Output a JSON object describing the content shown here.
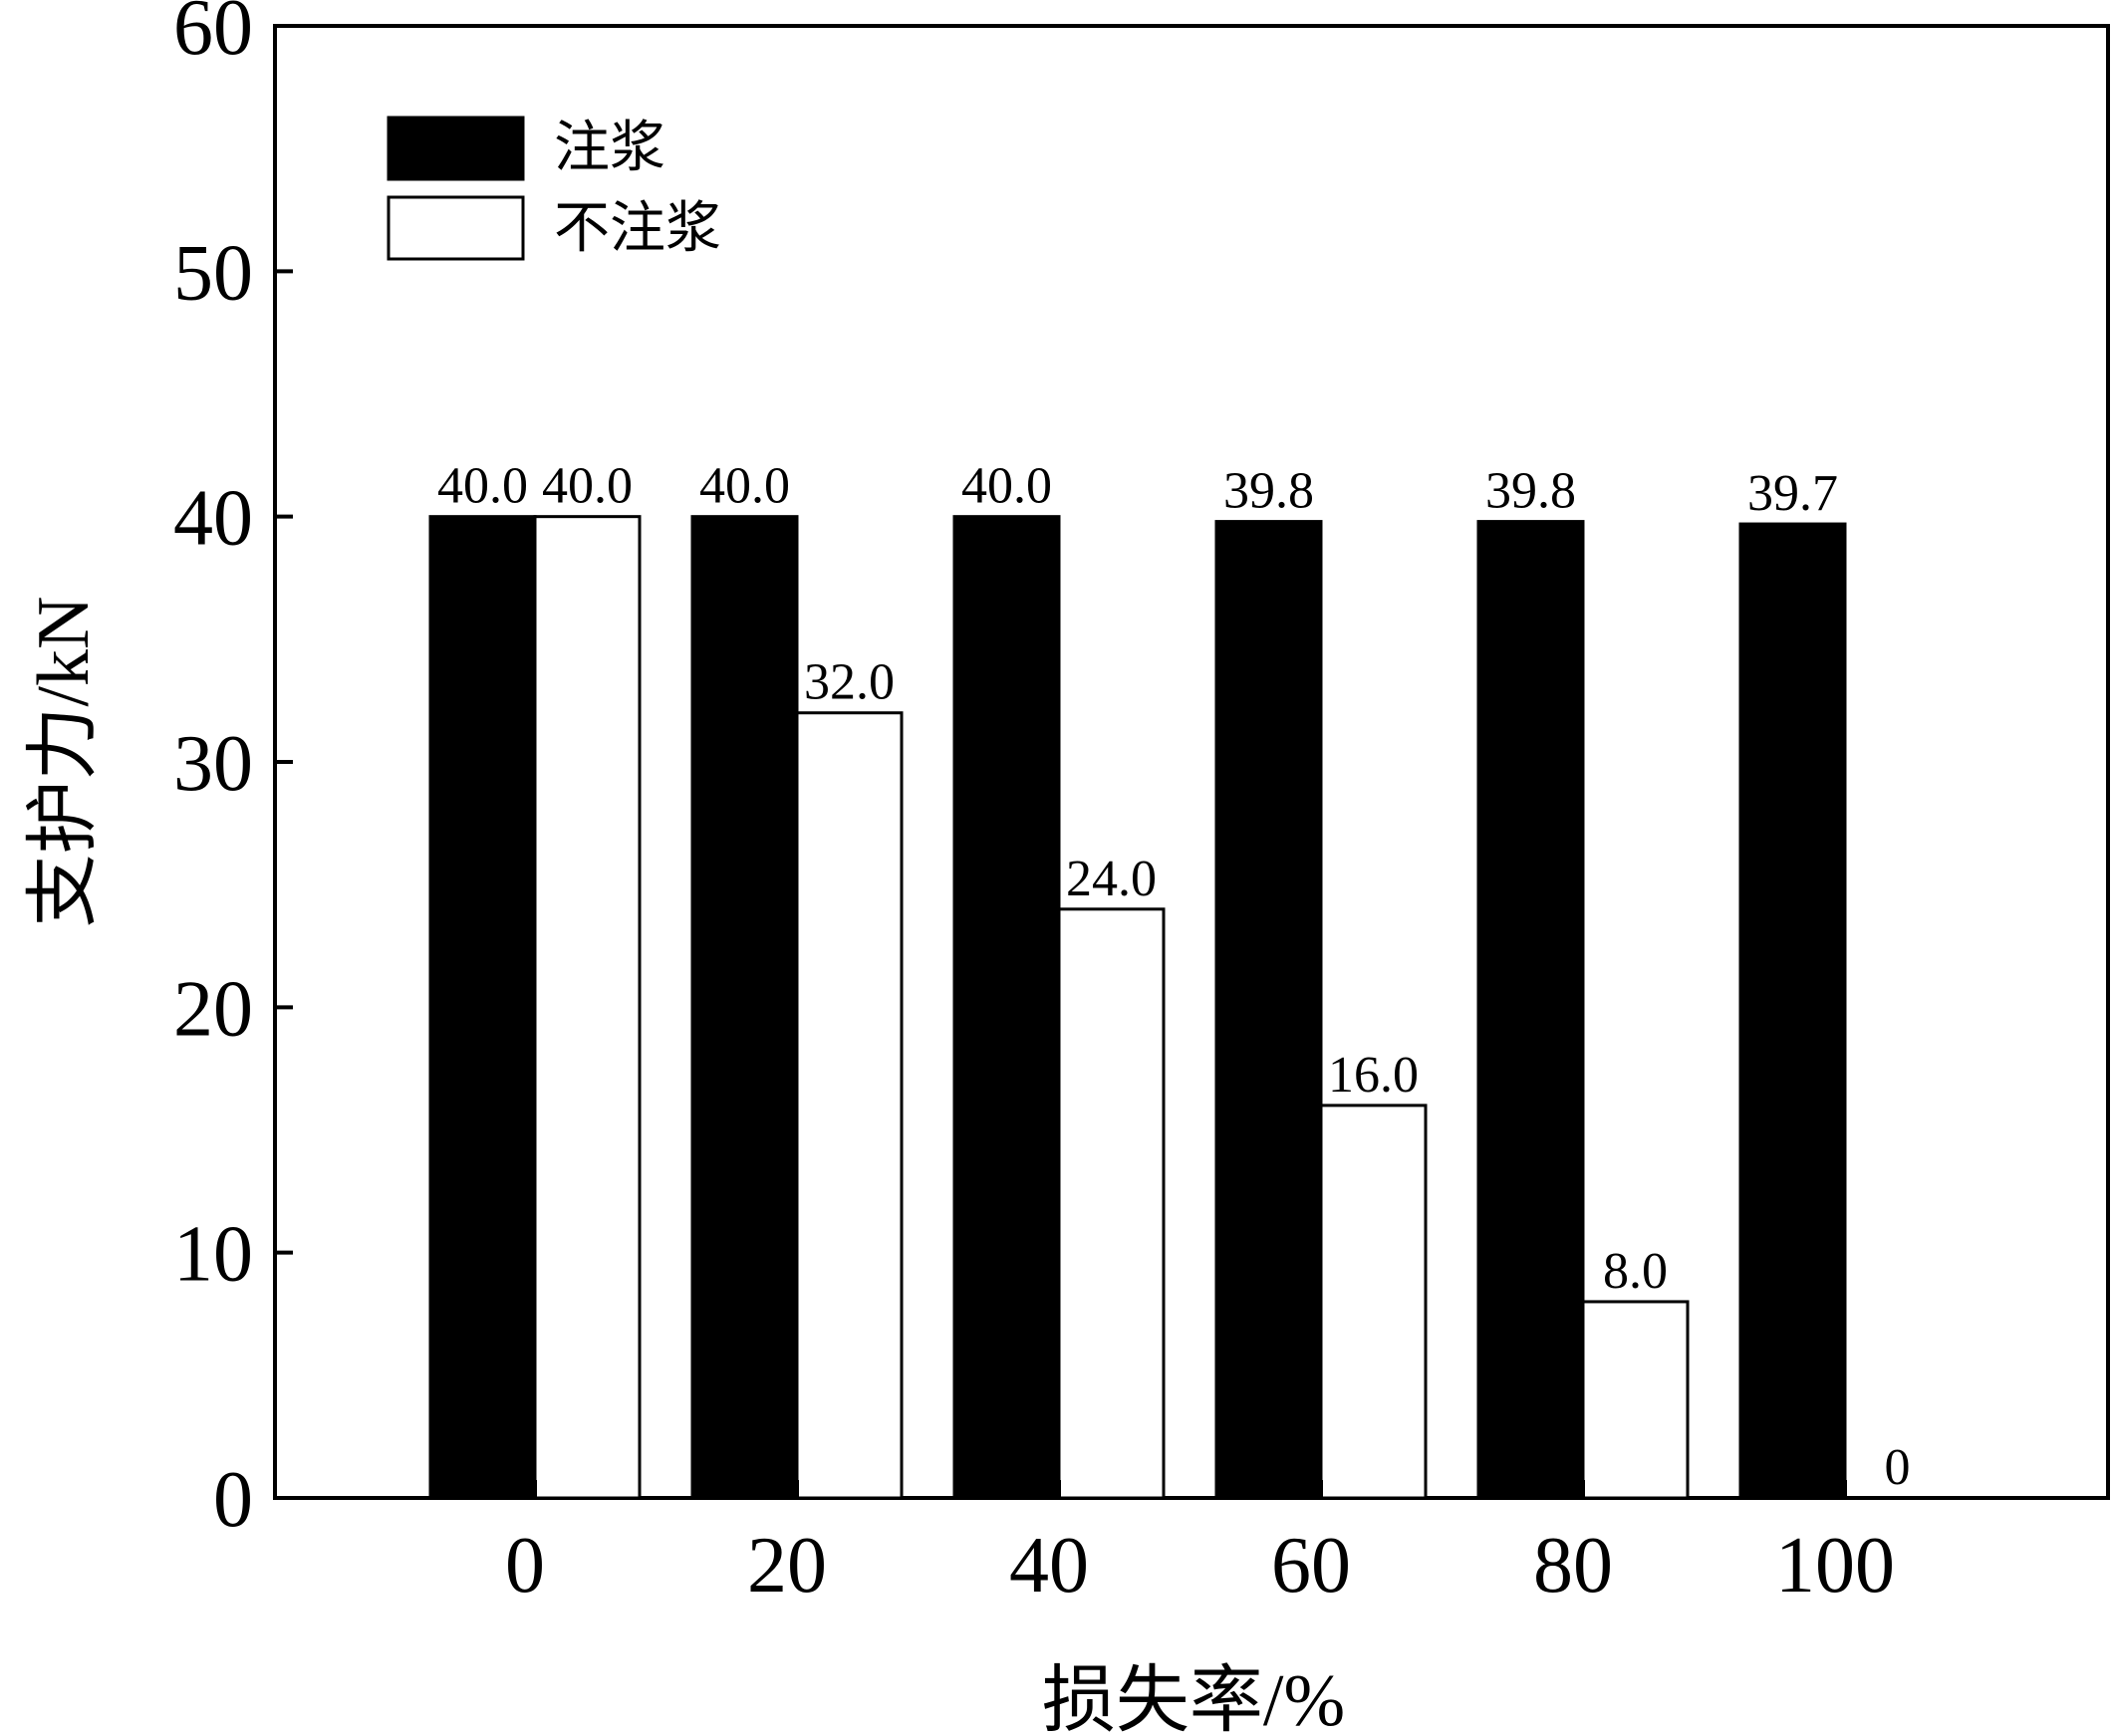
{
  "chart_data": {
    "type": "bar",
    "title": "",
    "xlabel": "损失率/%",
    "ylabel": "支护力/kN",
    "categories": [
      "0",
      "20",
      "40",
      "60",
      "80",
      "100"
    ],
    "series": [
      {
        "name": "注浆",
        "color": "#000000",
        "values": [
          40.0,
          40.0,
          40.0,
          39.8,
          39.8,
          39.7
        ],
        "labels": [
          "40.0",
          "40.0",
          "40.0",
          "39.8",
          "39.8",
          "39.7"
        ]
      },
      {
        "name": "不注浆",
        "color": "#ffffff",
        "values": [
          40.0,
          32.0,
          24.0,
          16.0,
          8.0,
          0
        ],
        "labels": [
          "40.0",
          "32.0",
          "24.0",
          "16.0",
          "8.0",
          "0"
        ]
      }
    ],
    "ylim": [
      0,
      60
    ],
    "yticks": [
      "0",
      "10",
      "20",
      "30",
      "40",
      "50",
      "60"
    ],
    "grid": false,
    "legend_position": "top-left"
  }
}
